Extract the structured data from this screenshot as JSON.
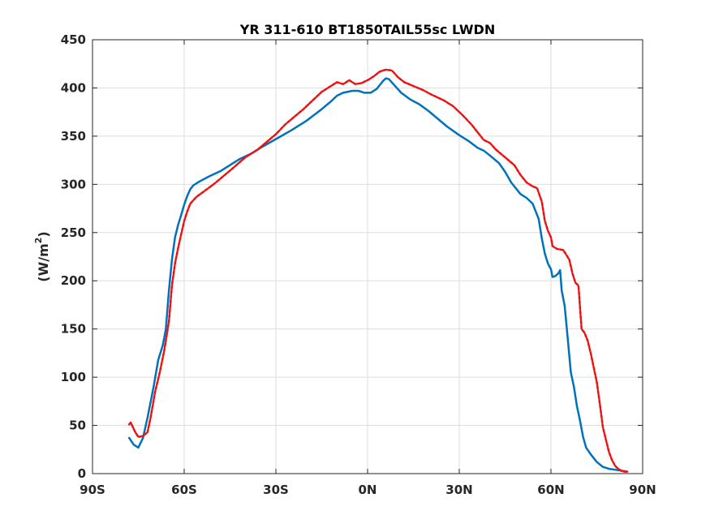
{
  "chart_data": {
    "type": "line",
    "title": "YR 311-610 BT1850TAIL55sc LWDN",
    "xlabel": "",
    "ylabel_main": "(W/m",
    "ylabel_sup": "2",
    "ylabel_close": ")",
    "xlim": [
      -90,
      90
    ],
    "ylim": [
      0,
      450
    ],
    "xticks": [
      {
        "value": -90,
        "label": "90S"
      },
      {
        "value": -60,
        "label": "60S"
      },
      {
        "value": -30,
        "label": "30S"
      },
      {
        "value": 0,
        "label": "0N"
      },
      {
        "value": 30,
        "label": "30N"
      },
      {
        "value": 60,
        "label": "60N"
      },
      {
        "value": 90,
        "label": "90N"
      }
    ],
    "yticks": [
      0,
      50,
      100,
      150,
      200,
      250,
      300,
      350,
      400,
      450
    ],
    "grid": true,
    "series": [
      {
        "color": "#0072bd",
        "style": "solid",
        "points": [
          [
            -78,
            37
          ],
          [
            -76.5,
            30
          ],
          [
            -75,
            27
          ],
          [
            -73.5,
            37
          ],
          [
            -72,
            58
          ],
          [
            -70,
            90
          ],
          [
            -68.5,
            118
          ],
          [
            -67,
            133
          ],
          [
            -66,
            150
          ],
          [
            -65,
            190
          ],
          [
            -64,
            222
          ],
          [
            -63,
            245
          ],
          [
            -62,
            258
          ],
          [
            -61,
            268
          ],
          [
            -60,
            279
          ],
          [
            -59,
            288
          ],
          [
            -58,
            295
          ],
          [
            -57,
            299
          ],
          [
            -55,
            303
          ],
          [
            -52,
            308
          ],
          [
            -48,
            314
          ],
          [
            -45,
            320
          ],
          [
            -42,
            326
          ],
          [
            -38,
            332
          ],
          [
            -35,
            338
          ],
          [
            -30,
            347
          ],
          [
            -25,
            356
          ],
          [
            -20,
            366
          ],
          [
            -15,
            378
          ],
          [
            -12,
            386
          ],
          [
            -10,
            392
          ],
          [
            -8,
            395
          ],
          [
            -5,
            397
          ],
          [
            -3,
            397
          ],
          [
            -1,
            395
          ],
          [
            1,
            395
          ],
          [
            3,
            399
          ],
          [
            5,
            407
          ],
          [
            6,
            410
          ],
          [
            7,
            409
          ],
          [
            9,
            402
          ],
          [
            11,
            395
          ],
          [
            14,
            388
          ],
          [
            17,
            383
          ],
          [
            20,
            376
          ],
          [
            23,
            368
          ],
          [
            26,
            360
          ],
          [
            30,
            351
          ],
          [
            33,
            345
          ],
          [
            36,
            338
          ],
          [
            38,
            335
          ],
          [
            40,
            330
          ],
          [
            43,
            322
          ],
          [
            45,
            313
          ],
          [
            47,
            302
          ],
          [
            50,
            290
          ],
          [
            52,
            286
          ],
          [
            54,
            280
          ],
          [
            56,
            264
          ],
          [
            57,
            244
          ],
          [
            58,
            228
          ],
          [
            59,
            218
          ],
          [
            60,
            212
          ],
          [
            60.5,
            204
          ],
          [
            61.5,
            205
          ],
          [
            62.5,
            208
          ],
          [
            63,
            211
          ],
          [
            63.5,
            190
          ],
          [
            64.5,
            174
          ],
          [
            65.5,
            140
          ],
          [
            66.5,
            105
          ],
          [
            67.5,
            90
          ],
          [
            68.5,
            70
          ],
          [
            69.5,
            55
          ],
          [
            70.5,
            38
          ],
          [
            71.5,
            27
          ],
          [
            73,
            20
          ],
          [
            75,
            12
          ],
          [
            77,
            7
          ],
          [
            79,
            5
          ],
          [
            81,
            4
          ],
          [
            83,
            3
          ],
          [
            85,
            2
          ]
        ]
      },
      {
        "color": "#ee1111",
        "style": "dashed",
        "points": [
          [
            -78,
            51
          ],
          [
            -77.5,
            53
          ],
          [
            -76,
            43
          ],
          [
            -75,
            38
          ],
          [
            -73.5,
            39
          ],
          [
            -72,
            43
          ],
          [
            -71,
            58
          ],
          [
            -69.5,
            85
          ],
          [
            -68,
            105
          ],
          [
            -66.5,
            128
          ],
          [
            -65,
            158
          ],
          [
            -64,
            195
          ],
          [
            -63,
            218
          ],
          [
            -62,
            234
          ],
          [
            -61,
            248
          ],
          [
            -60,
            262
          ],
          [
            -59,
            272
          ],
          [
            -58,
            280
          ],
          [
            -56,
            287
          ],
          [
            -53,
            294
          ],
          [
            -50,
            301
          ],
          [
            -47,
            309
          ],
          [
            -44,
            317
          ],
          [
            -40,
            328
          ],
          [
            -36,
            336
          ],
          [
            -33,
            344
          ],
          [
            -30,
            352
          ],
          [
            -27,
            362
          ],
          [
            -24,
            370
          ],
          [
            -21,
            378
          ],
          [
            -18,
            387
          ],
          [
            -15,
            396
          ],
          [
            -12,
            402
          ],
          [
            -10,
            406
          ],
          [
            -8,
            404
          ],
          [
            -6,
            408
          ],
          [
            -4,
            404
          ],
          [
            -2,
            405
          ],
          [
            0,
            408
          ],
          [
            2,
            412
          ],
          [
            4,
            417
          ],
          [
            6,
            419
          ],
          [
            8,
            418
          ],
          [
            10,
            411
          ],
          [
            12,
            406
          ],
          [
            15,
            402
          ],
          [
            18,
            398
          ],
          [
            21,
            393
          ],
          [
            25,
            387
          ],
          [
            28,
            381
          ],
          [
            31,
            372
          ],
          [
            34,
            362
          ],
          [
            36,
            354
          ],
          [
            38,
            346
          ],
          [
            40,
            343
          ],
          [
            42,
            336
          ],
          [
            45,
            328
          ],
          [
            48,
            320
          ],
          [
            50,
            310
          ],
          [
            52,
            302
          ],
          [
            54,
            298
          ],
          [
            55.5,
            296
          ],
          [
            57,
            282
          ],
          [
            58,
            262
          ],
          [
            59,
            252
          ],
          [
            60,
            245
          ],
          [
            60.5,
            236
          ],
          [
            62,
            233
          ],
          [
            64,
            232
          ],
          [
            66,
            222
          ],
          [
            67,
            208
          ],
          [
            68,
            198
          ],
          [
            69,
            195
          ],
          [
            70,
            150
          ],
          [
            71,
            146
          ],
          [
            72,
            138
          ],
          [
            73,
            125
          ],
          [
            74,
            110
          ],
          [
            75,
            95
          ],
          [
            76,
            72
          ],
          [
            77,
            48
          ],
          [
            78,
            35
          ],
          [
            79,
            22
          ],
          [
            80,
            14
          ],
          [
            81,
            8
          ],
          [
            82,
            5
          ],
          [
            83,
            3
          ],
          [
            84,
            2
          ],
          [
            85,
            2
          ]
        ]
      }
    ]
  }
}
